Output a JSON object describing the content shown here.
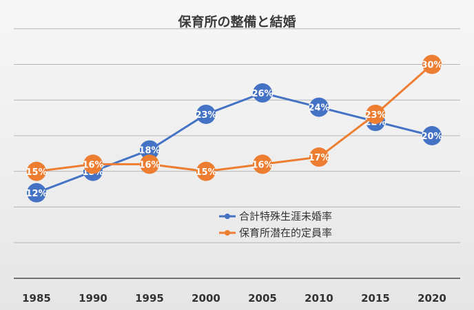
{
  "chart_data": {
    "type": "line",
    "title": "保育所の整備と結婚",
    "xlabel": "",
    "ylabel": "",
    "categories": [
      "1985",
      "1990",
      "1995",
      "2000",
      "2005",
      "2010",
      "2015",
      "2020"
    ],
    "series": [
      {
        "name": "合計特殊生涯未婚率",
        "color": "#4472c4",
        "values": [
          12,
          15,
          18,
          23,
          26,
          24,
          22,
          20
        ],
        "labels": [
          "12%",
          "15%",
          "18%",
          "23%",
          "26%",
          "24%",
          "22%",
          "20%"
        ]
      },
      {
        "name": "保育所潜在的定員率",
        "color": "#ed7d31",
        "values": [
          15,
          16,
          16,
          15,
          16,
          17,
          23,
          30
        ],
        "labels": [
          "15%",
          "16%",
          "16%",
          "15%",
          "16%",
          "17%",
          "23%",
          "30%"
        ]
      }
    ],
    "ylim": [
      0,
      35
    ],
    "grid": true,
    "legend": "center-right"
  }
}
